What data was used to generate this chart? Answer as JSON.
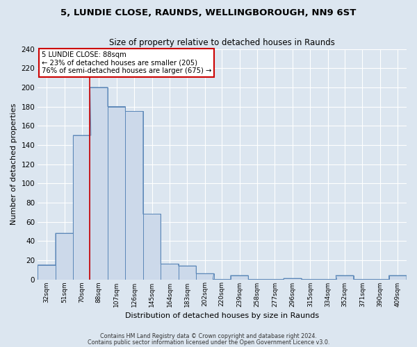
{
  "title_line1": "5, LUNDIE CLOSE, RAUNDS, WELLINGBOROUGH, NN9 6ST",
  "title_line2": "Size of property relative to detached houses in Raunds",
  "xlabel": "Distribution of detached houses by size in Raunds",
  "ylabel": "Number of detached properties",
  "bin_labels": [
    "32sqm",
    "51sqm",
    "70sqm",
    "88sqm",
    "107sqm",
    "126sqm",
    "145sqm",
    "164sqm",
    "183sqm",
    "202sqm",
    "220sqm",
    "239sqm",
    "258sqm",
    "277sqm",
    "296sqm",
    "315sqm",
    "334sqm",
    "352sqm",
    "371sqm",
    "390sqm",
    "409sqm"
  ],
  "bin_left_edges": [
    32,
    51,
    70,
    88,
    107,
    126,
    145,
    164,
    183,
    202,
    220,
    239,
    258,
    277,
    296,
    315,
    334,
    352,
    371,
    390,
    409
  ],
  "bin_width": 19,
  "bar_heights": [
    15,
    48,
    150,
    200,
    180,
    175,
    68,
    16,
    14,
    6,
    0,
    4,
    0,
    0,
    1,
    0,
    0,
    4,
    0,
    0,
    4
  ],
  "bar_fill_color": "#ccd9ea",
  "bar_edge_color": "#5b87b8",
  "property_size": 88,
  "vline_color": "#cc0000",
  "vline_x": 88,
  "annotation_line1": "5 LUNDIE CLOSE: 88sqm",
  "annotation_line2": "← 23% of detached houses are smaller (205)",
  "annotation_line3": "76% of semi-detached houses are larger (675) →",
  "ylim_max": 240,
  "yticks": [
    0,
    20,
    40,
    60,
    80,
    100,
    120,
    140,
    160,
    180,
    200,
    220,
    240
  ],
  "background_color": "#dce6f0",
  "grid_color": "#ffffff",
  "footer_line1": "Contains HM Land Registry data © Crown copyright and database right 2024.",
  "footer_line2": "Contains public sector information licensed under the Open Government Licence v3.0."
}
